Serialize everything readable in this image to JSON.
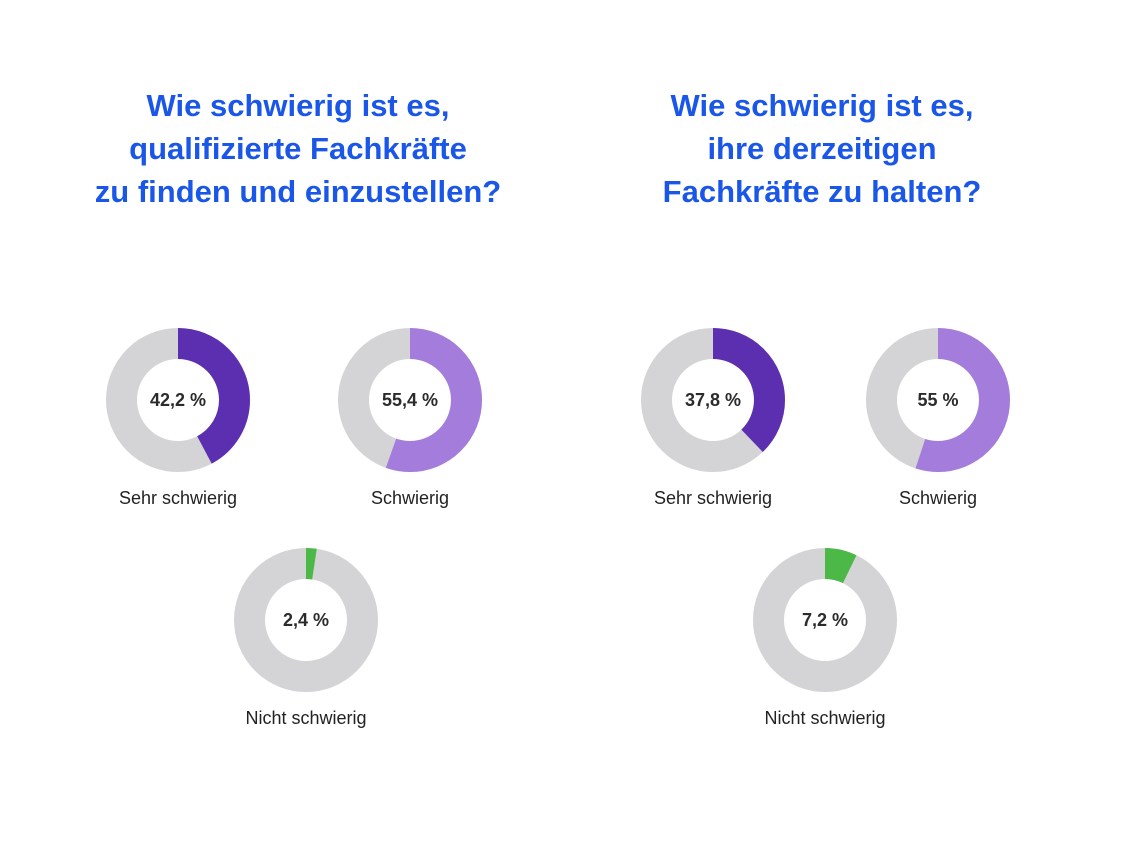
{
  "colors": {
    "title": "#1a56e8",
    "track": "#d4d3d6",
    "sehr_schwierig": "#5b2fb0",
    "schwierig": "#a47ddc",
    "nicht_schwierig": "#4cb848"
  },
  "chart_data": [
    {
      "type": "donut",
      "title_lines": [
        "Wie schwierig ist es,",
        "qualifizierte Fachkräfte",
        "zu finden und einzustellen?"
      ],
      "slices": [
        {
          "label": "Sehr schwierig",
          "value": 42.2,
          "display": "42,2 %"
        },
        {
          "label": "Schwierig",
          "value": 55.4,
          "display": "55,4 %"
        },
        {
          "label": "Nicht schwierig",
          "value": 2.4,
          "display": "2,4 %"
        }
      ]
    },
    {
      "type": "donut",
      "title_lines": [
        "Wie schwierig ist es,",
        "ihre derzeitigen",
        "Fachkräfte zu halten?"
      ],
      "slices": [
        {
          "label": "Sehr schwierig",
          "value": 37.8,
          "display": "37,8 %"
        },
        {
          "label": "Schwierig",
          "value": 55,
          "display": "55 %"
        },
        {
          "label": "Nicht schwierig",
          "value": 7.2,
          "display": "7,2 %"
        }
      ]
    }
  ]
}
